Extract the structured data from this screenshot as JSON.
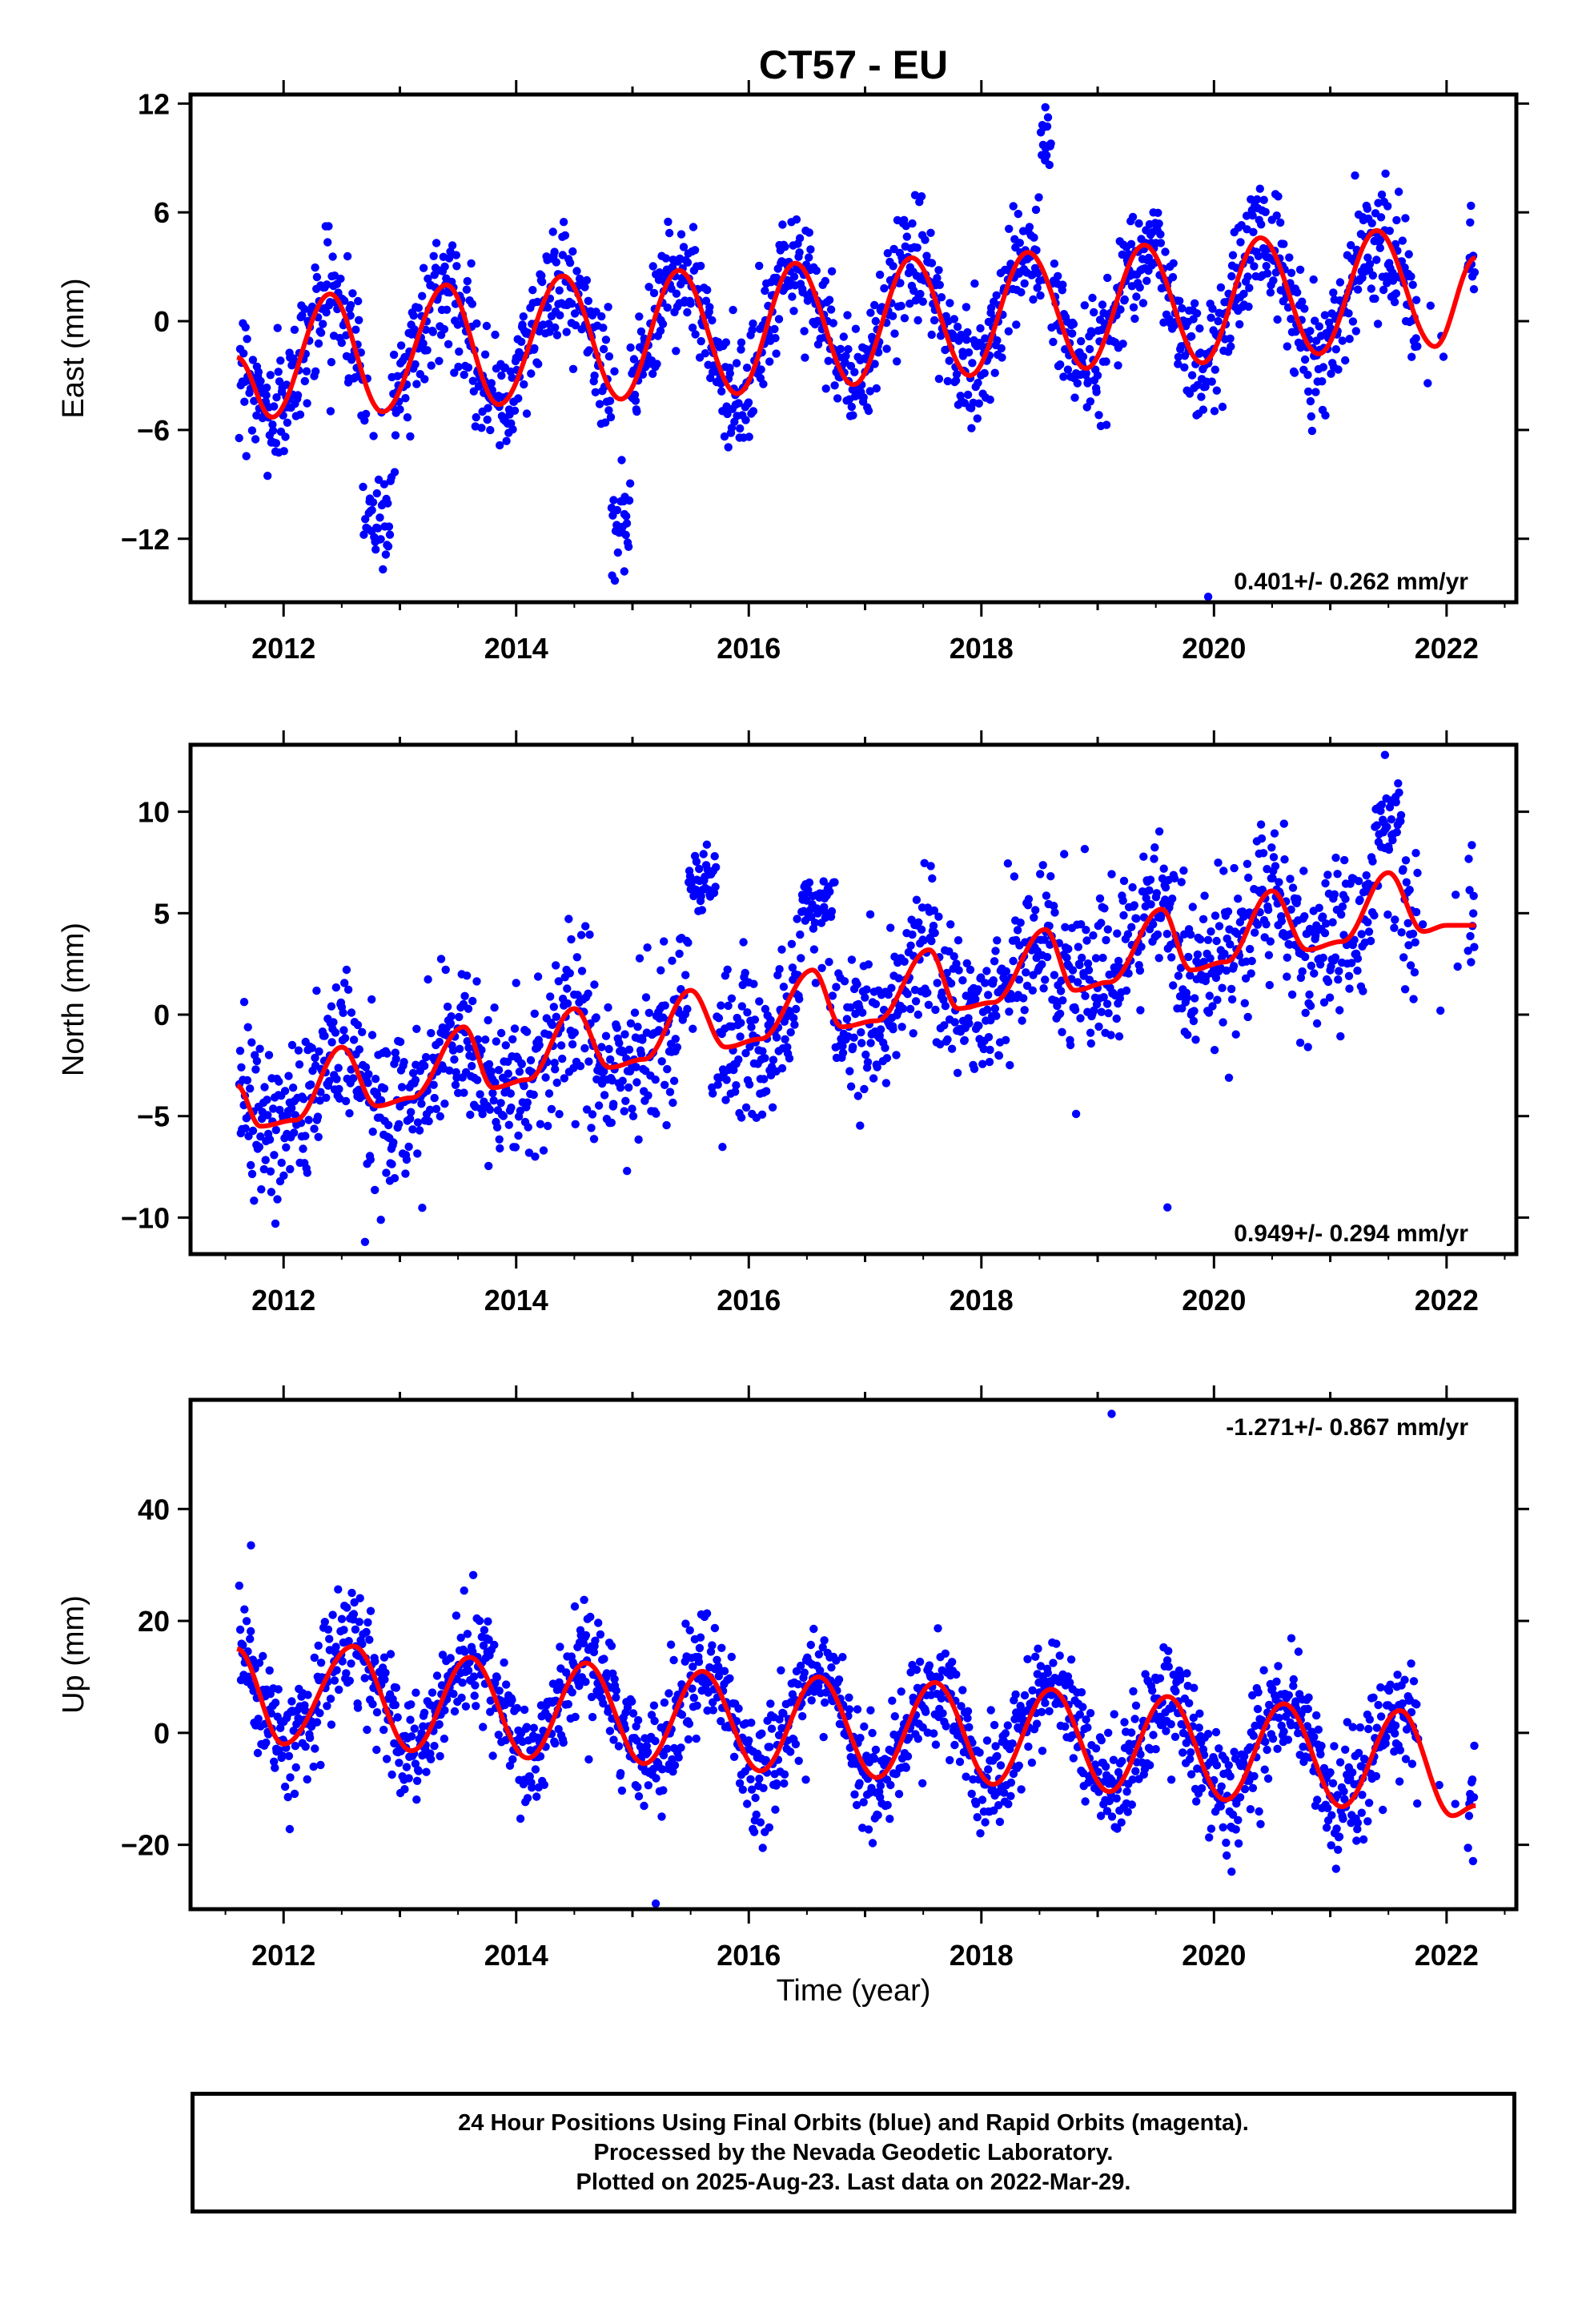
{
  "title": "CT57 - EU",
  "xlabel": "Time (year)",
  "colors": {
    "points": "#0000ff",
    "fit": "#ff0000",
    "axes": "#000000"
  },
  "footer": {
    "line1": "24 Hour Positions Using Final Orbits (blue) and Rapid Orbits (magenta).",
    "line2": "Processed by the Nevada Geodetic Laboratory.",
    "line3": "Plotted on 2025-Aug-23. Last data on 2022-Mar-29."
  },
  "chart_data": [
    {
      "type": "scatter",
      "component": "east",
      "ylabel": "East (mm)",
      "rate_label": "0.401+/- 0.262 mm/yr",
      "xlim": [
        2011.2,
        2022.6
      ],
      "ylim": [
        -15.5,
        12.5
      ],
      "x_ticks": [
        2012,
        2014,
        2016,
        2018,
        2020,
        2022
      ],
      "y_ticks": [
        -12,
        -6,
        0,
        6,
        12
      ],
      "data_range": [
        2011.62,
        2022.24
      ],
      "trend": {
        "intercept_mm": -2.0,
        "rate_mm_per_yr": 0.401,
        "ref_year": 2011.6
      },
      "seasonal_fit": {
        "annual_amp": 3.8,
        "annual_phase_peak": 0.42,
        "semiannual_amp": 0.9
      },
      "fit_points": [
        [
          2011.6,
          -2.0
        ],
        [
          2011.9,
          -5.3
        ],
        [
          2012.4,
          1.5
        ],
        [
          2012.85,
          -5.0
        ],
        [
          2013.4,
          2.0
        ],
        [
          2013.85,
          -4.6
        ],
        [
          2014.4,
          2.5
        ],
        [
          2014.9,
          -4.3
        ],
        [
          2015.4,
          2.8
        ],
        [
          2015.9,
          -4.0
        ],
        [
          2016.4,
          3.2
        ],
        [
          2016.9,
          -3.5
        ],
        [
          2017.4,
          3.5
        ],
        [
          2017.9,
          -3.0
        ],
        [
          2018.4,
          3.8
        ],
        [
          2018.9,
          -2.6
        ],
        [
          2019.4,
          4.2
        ],
        [
          2019.9,
          -2.3
        ],
        [
          2020.4,
          4.6
        ],
        [
          2020.9,
          -1.8
        ],
        [
          2021.4,
          5.0
        ],
        [
          2021.9,
          -1.4
        ],
        [
          2022.25,
          3.5
        ]
      ],
      "noise_sd_mm": 1.6,
      "outlier_episodes": [
        {
          "center": 2012.8,
          "width": 0.12,
          "value": -11.0
        },
        {
          "center": 2014.9,
          "width": 0.08,
          "value": -11.5
        },
        {
          "center": 2018.55,
          "width": 0.05,
          "value": 9.5
        }
      ],
      "marked_values": [
        {
          "x": 2018.55,
          "y": 11.8
        },
        {
          "x": 2019.95,
          "y": -15.2
        },
        {
          "x": 2014.93,
          "y": -13.8
        }
      ]
    },
    {
      "type": "scatter",
      "component": "north",
      "ylabel": "North (mm)",
      "rate_label": "0.949+/- 0.294 mm/yr",
      "xlim": [
        2011.2,
        2022.6
      ],
      "ylim": [
        -11.8,
        13.3
      ],
      "x_ticks": [
        2012,
        2014,
        2016,
        2018,
        2020,
        2022
      ],
      "y_ticks": [
        -10,
        -5,
        0,
        5,
        10
      ],
      "data_range": [
        2011.62,
        2022.24
      ],
      "fit_points": [
        [
          2011.6,
          -3.5
        ],
        [
          2011.8,
          -5.5
        ],
        [
          2012.1,
          -5.2
        ],
        [
          2012.5,
          -1.6
        ],
        [
          2012.8,
          -4.5
        ],
        [
          2013.1,
          -4.1
        ],
        [
          2013.55,
          -0.6
        ],
        [
          2013.8,
          -3.6
        ],
        [
          2014.1,
          -3.2
        ],
        [
          2014.5,
          0.3
        ],
        [
          2014.8,
          -2.6
        ],
        [
          2015.1,
          -2.2
        ],
        [
          2015.5,
          1.2
        ],
        [
          2015.8,
          -1.6
        ],
        [
          2016.1,
          -1.2
        ],
        [
          2016.55,
          2.2
        ],
        [
          2016.8,
          -0.6
        ],
        [
          2017.1,
          -0.3
        ],
        [
          2017.55,
          3.2
        ],
        [
          2017.8,
          0.3
        ],
        [
          2018.1,
          0.6
        ],
        [
          2018.55,
          4.2
        ],
        [
          2018.8,
          1.2
        ],
        [
          2019.1,
          1.6
        ],
        [
          2019.55,
          5.2
        ],
        [
          2019.8,
          2.2
        ],
        [
          2020.1,
          2.6
        ],
        [
          2020.5,
          6.1
        ],
        [
          2020.8,
          3.2
        ],
        [
          2021.1,
          3.6
        ],
        [
          2021.5,
          7.0
        ],
        [
          2021.8,
          4.1
        ],
        [
          2022.0,
          4.4
        ],
        [
          2022.25,
          4.4
        ]
      ],
      "noise_sd_mm": 1.9,
      "outlier_episodes": [
        {
          "center": 2015.6,
          "width": 0.12,
          "value": 6.5
        },
        {
          "center": 2016.6,
          "width": 0.15,
          "value": 5.5
        },
        {
          "center": 2021.5,
          "width": 0.12,
          "value": 9.5
        }
      ],
      "marked_values": [
        {
          "x": 2021.47,
          "y": 12.8
        },
        {
          "x": 2019.6,
          "y": -9.5
        },
        {
          "x": 2012.7,
          "y": -11.2
        }
      ]
    },
    {
      "type": "scatter",
      "component": "up",
      "ylabel": "Up (mm)",
      "rate_label": "-1.271+/- 0.867 mm/yr",
      "xlim": [
        2011.2,
        2022.6
      ],
      "ylim": [
        -31.5,
        59.5
      ],
      "x_ticks": [
        2012,
        2014,
        2016,
        2018,
        2020,
        2022
      ],
      "y_ticks": [
        -20,
        0,
        20,
        40
      ],
      "data_range": [
        2011.62,
        2022.24
      ],
      "fit_points": [
        [
          2011.6,
          15.0
        ],
        [
          2012.0,
          -2.0
        ],
        [
          2012.6,
          15.5
        ],
        [
          2013.1,
          -3.2
        ],
        [
          2013.6,
          13.5
        ],
        [
          2014.1,
          -4.5
        ],
        [
          2014.6,
          12.5
        ],
        [
          2015.1,
          -5.5
        ],
        [
          2015.6,
          11.0
        ],
        [
          2016.1,
          -6.8
        ],
        [
          2016.6,
          10.0
        ],
        [
          2017.1,
          -8.0
        ],
        [
          2017.6,
          9.0
        ],
        [
          2018.1,
          -9.2
        ],
        [
          2018.6,
          7.8
        ],
        [
          2019.1,
          -10.5
        ],
        [
          2019.6,
          6.5
        ],
        [
          2020.1,
          -12.0
        ],
        [
          2020.6,
          5.2
        ],
        [
          2021.1,
          -13.2
        ],
        [
          2021.6,
          4.0
        ],
        [
          2022.05,
          -14.8
        ],
        [
          2022.25,
          -13.0
        ]
      ],
      "noise_sd_mm": 5.0,
      "outlier_episodes": [],
      "marked_values": [
        {
          "x": 2019.12,
          "y": 57.0
        },
        {
          "x": 2015.2,
          "y": -30.5
        },
        {
          "x": 2011.72,
          "y": 33.5
        }
      ]
    }
  ]
}
